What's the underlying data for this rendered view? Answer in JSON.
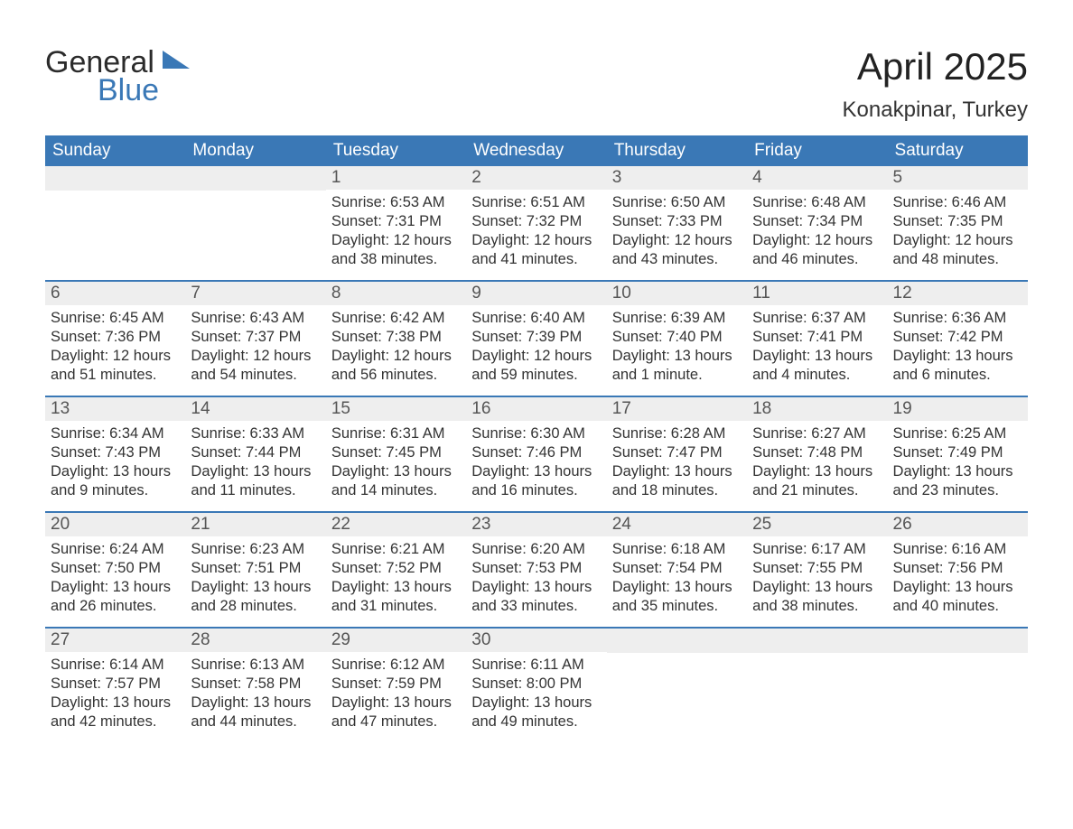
{
  "brand": {
    "logo_top": "General",
    "logo_bottom": "Blue",
    "accent_color": "#3a78b6",
    "text_color": "#333333",
    "bg_color": "#ffffff",
    "daynum_bg": "#eeeeee"
  },
  "title": "April 2025",
  "location": "Konakpinar, Turkey",
  "days_of_week": [
    "Sunday",
    "Monday",
    "Tuesday",
    "Wednesday",
    "Thursday",
    "Friday",
    "Saturday"
  ],
  "label_sunrise": "Sunrise: ",
  "label_sunset": "Sunset: ",
  "label_daylight": "Daylight: ",
  "weeks": [
    [
      {
        "num": "",
        "sunrise": "",
        "sunset": "",
        "daylight1": "",
        "daylight2": ""
      },
      {
        "num": "",
        "sunrise": "",
        "sunset": "",
        "daylight1": "",
        "daylight2": ""
      },
      {
        "num": "1",
        "sunrise": "6:53 AM",
        "sunset": "7:31 PM",
        "daylight1": "12 hours",
        "daylight2": "and 38 minutes."
      },
      {
        "num": "2",
        "sunrise": "6:51 AM",
        "sunset": "7:32 PM",
        "daylight1": "12 hours",
        "daylight2": "and 41 minutes."
      },
      {
        "num": "3",
        "sunrise": "6:50 AM",
        "sunset": "7:33 PM",
        "daylight1": "12 hours",
        "daylight2": "and 43 minutes."
      },
      {
        "num": "4",
        "sunrise": "6:48 AM",
        "sunset": "7:34 PM",
        "daylight1": "12 hours",
        "daylight2": "and 46 minutes."
      },
      {
        "num": "5",
        "sunrise": "6:46 AM",
        "sunset": "7:35 PM",
        "daylight1": "12 hours",
        "daylight2": "and 48 minutes."
      }
    ],
    [
      {
        "num": "6",
        "sunrise": "6:45 AM",
        "sunset": "7:36 PM",
        "daylight1": "12 hours",
        "daylight2": "and 51 minutes."
      },
      {
        "num": "7",
        "sunrise": "6:43 AM",
        "sunset": "7:37 PM",
        "daylight1": "12 hours",
        "daylight2": "and 54 minutes."
      },
      {
        "num": "8",
        "sunrise": "6:42 AM",
        "sunset": "7:38 PM",
        "daylight1": "12 hours",
        "daylight2": "and 56 minutes."
      },
      {
        "num": "9",
        "sunrise": "6:40 AM",
        "sunset": "7:39 PM",
        "daylight1": "12 hours",
        "daylight2": "and 59 minutes."
      },
      {
        "num": "10",
        "sunrise": "6:39 AM",
        "sunset": "7:40 PM",
        "daylight1": "13 hours",
        "daylight2": "and 1 minute."
      },
      {
        "num": "11",
        "sunrise": "6:37 AM",
        "sunset": "7:41 PM",
        "daylight1": "13 hours",
        "daylight2": "and 4 minutes."
      },
      {
        "num": "12",
        "sunrise": "6:36 AM",
        "sunset": "7:42 PM",
        "daylight1": "13 hours",
        "daylight2": "and 6 minutes."
      }
    ],
    [
      {
        "num": "13",
        "sunrise": "6:34 AM",
        "sunset": "7:43 PM",
        "daylight1": "13 hours",
        "daylight2": "and 9 minutes."
      },
      {
        "num": "14",
        "sunrise": "6:33 AM",
        "sunset": "7:44 PM",
        "daylight1": "13 hours",
        "daylight2": "and 11 minutes."
      },
      {
        "num": "15",
        "sunrise": "6:31 AM",
        "sunset": "7:45 PM",
        "daylight1": "13 hours",
        "daylight2": "and 14 minutes."
      },
      {
        "num": "16",
        "sunrise": "6:30 AM",
        "sunset": "7:46 PM",
        "daylight1": "13 hours",
        "daylight2": "and 16 minutes."
      },
      {
        "num": "17",
        "sunrise": "6:28 AM",
        "sunset": "7:47 PM",
        "daylight1": "13 hours",
        "daylight2": "and 18 minutes."
      },
      {
        "num": "18",
        "sunrise": "6:27 AM",
        "sunset": "7:48 PM",
        "daylight1": "13 hours",
        "daylight2": "and 21 minutes."
      },
      {
        "num": "19",
        "sunrise": "6:25 AM",
        "sunset": "7:49 PM",
        "daylight1": "13 hours",
        "daylight2": "and 23 minutes."
      }
    ],
    [
      {
        "num": "20",
        "sunrise": "6:24 AM",
        "sunset": "7:50 PM",
        "daylight1": "13 hours",
        "daylight2": "and 26 minutes."
      },
      {
        "num": "21",
        "sunrise": "6:23 AM",
        "sunset": "7:51 PM",
        "daylight1": "13 hours",
        "daylight2": "and 28 minutes."
      },
      {
        "num": "22",
        "sunrise": "6:21 AM",
        "sunset": "7:52 PM",
        "daylight1": "13 hours",
        "daylight2": "and 31 minutes."
      },
      {
        "num": "23",
        "sunrise": "6:20 AM",
        "sunset": "7:53 PM",
        "daylight1": "13 hours",
        "daylight2": "and 33 minutes."
      },
      {
        "num": "24",
        "sunrise": "6:18 AM",
        "sunset": "7:54 PM",
        "daylight1": "13 hours",
        "daylight2": "and 35 minutes."
      },
      {
        "num": "25",
        "sunrise": "6:17 AM",
        "sunset": "7:55 PM",
        "daylight1": "13 hours",
        "daylight2": "and 38 minutes."
      },
      {
        "num": "26",
        "sunrise": "6:16 AM",
        "sunset": "7:56 PM",
        "daylight1": "13 hours",
        "daylight2": "and 40 minutes."
      }
    ],
    [
      {
        "num": "27",
        "sunrise": "6:14 AM",
        "sunset": "7:57 PM",
        "daylight1": "13 hours",
        "daylight2": "and 42 minutes."
      },
      {
        "num": "28",
        "sunrise": "6:13 AM",
        "sunset": "7:58 PM",
        "daylight1": "13 hours",
        "daylight2": "and 44 minutes."
      },
      {
        "num": "29",
        "sunrise": "6:12 AM",
        "sunset": "7:59 PM",
        "daylight1": "13 hours",
        "daylight2": "and 47 minutes."
      },
      {
        "num": "30",
        "sunrise": "6:11 AM",
        "sunset": "8:00 PM",
        "daylight1": "13 hours",
        "daylight2": "and 49 minutes."
      },
      {
        "num": "",
        "sunrise": "",
        "sunset": "",
        "daylight1": "",
        "daylight2": ""
      },
      {
        "num": "",
        "sunrise": "",
        "sunset": "",
        "daylight1": "",
        "daylight2": ""
      },
      {
        "num": "",
        "sunrise": "",
        "sunset": "",
        "daylight1": "",
        "daylight2": ""
      }
    ]
  ]
}
